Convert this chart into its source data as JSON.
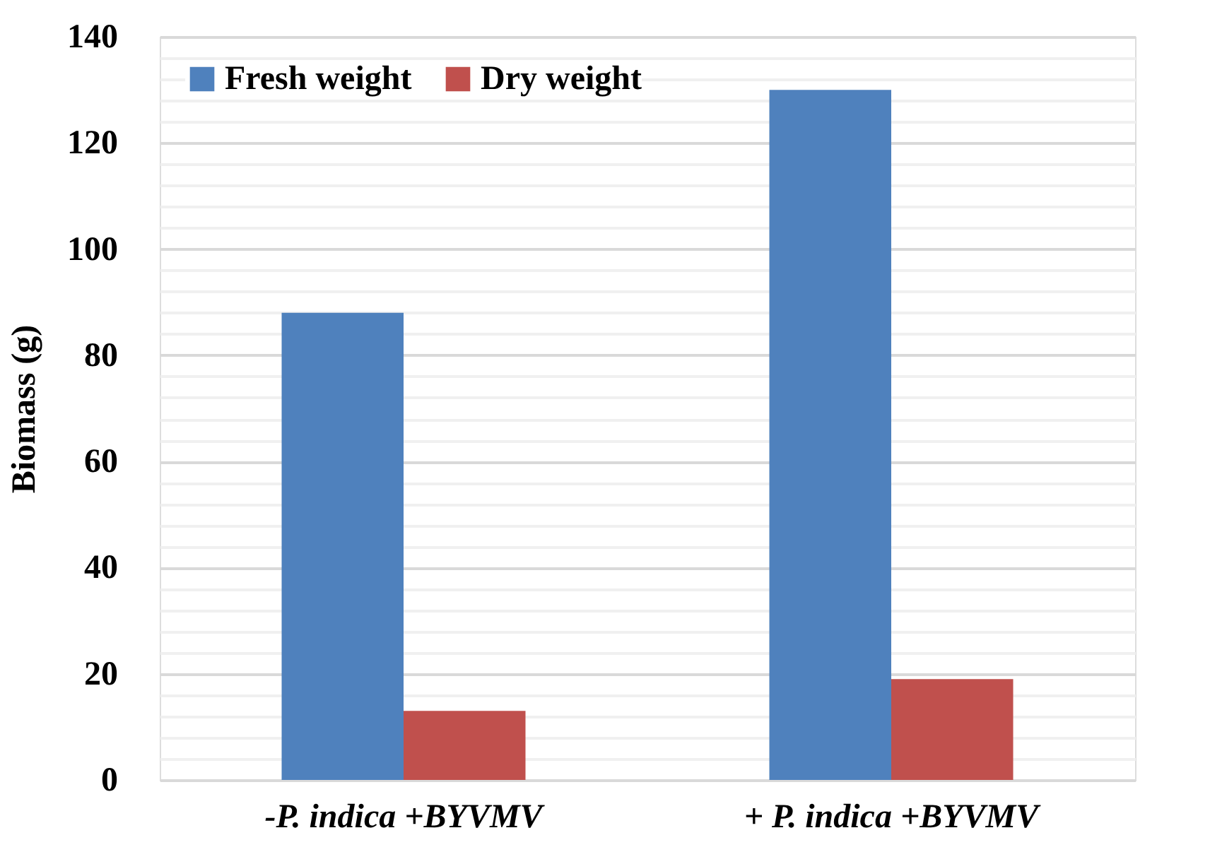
{
  "chart_data": {
    "type": "bar",
    "ylabel": "Biomass (g)",
    "categories": [
      "-P. indica +BYVMV",
      "+ P. indica +BYVMV"
    ],
    "series": [
      {
        "name": "Fresh weight",
        "color": "#4f81bd",
        "values": [
          88,
          130
        ]
      },
      {
        "name": "Dry weight",
        "color": "#c0504d",
        "values": [
          13,
          19
        ]
      }
    ],
    "ylim": [
      0,
      140
    ],
    "yticks": [
      0,
      {
        "value": 4,
        "label": null
      },
      {
        "value": 8,
        "label": null
      },
      {
        "value": 12,
        "label": null
      },
      {
        "value": 16,
        "label": null
      },
      20,
      {
        "value": 24,
        "label": null
      },
      {
        "value": 28,
        "label": null
      },
      {
        "value": 32,
        "label": null
      },
      {
        "value": 36,
        "label": null
      },
      40,
      {
        "value": 44,
        "label": null
      },
      {
        "value": 48,
        "label": null
      },
      {
        "value": 52,
        "label": null
      },
      {
        "value": 56,
        "label": null
      },
      60,
      {
        "value": 64,
        "label": null
      },
      {
        "value": 68,
        "label": null
      },
      {
        "value": 72,
        "label": null
      },
      {
        "value": 76,
        "label": null
      },
      80,
      {
        "value": 84,
        "label": null
      },
      {
        "value": 88,
        "label": null
      },
      {
        "value": 92,
        "label": null
      },
      {
        "value": 96,
        "label": null
      },
      100,
      {
        "value": 104,
        "label": null
      },
      {
        "value": 108,
        "label": null
      },
      {
        "value": 112,
        "label": null
      },
      {
        "value": 116,
        "label": null
      },
      120,
      {
        "value": 124,
        "label": null
      },
      {
        "value": 128,
        "label": null
      },
      {
        "value": 132,
        "label": null
      },
      {
        "value": 136,
        "label": null
      },
      140
    ],
    "grid": "y",
    "legend": "top left"
  }
}
